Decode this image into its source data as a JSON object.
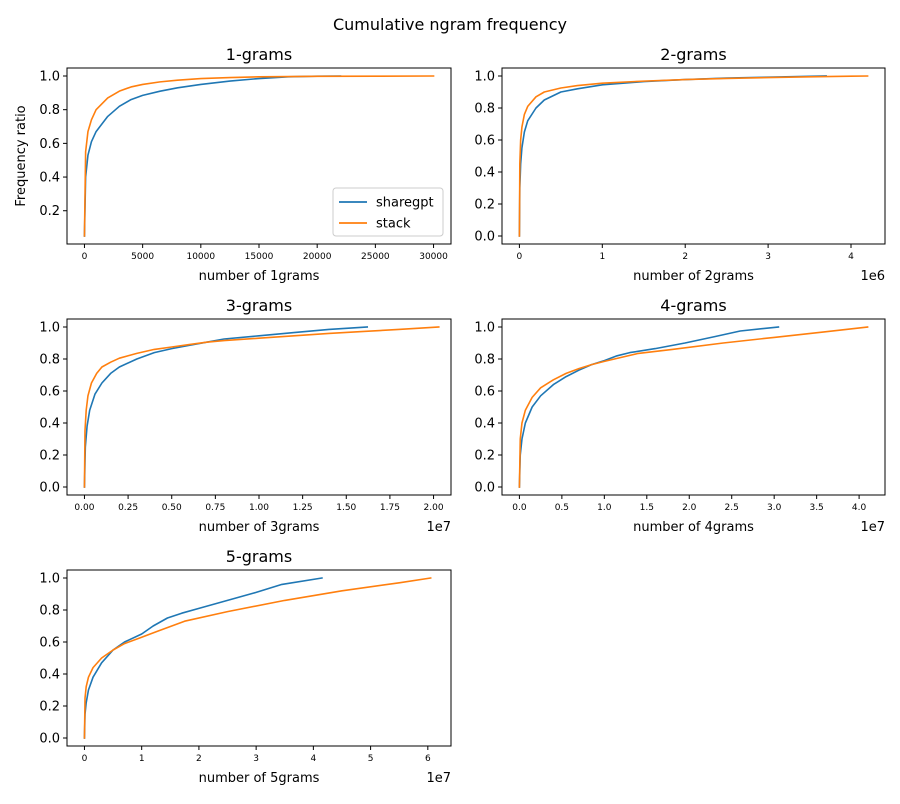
{
  "figure_title": "Cumulative ngram frequency",
  "chart_data": [
    {
      "type": "line",
      "title": "1-grams",
      "xlabel": "number of 1grams",
      "ylabel": "Frequency ratio",
      "xlim": [
        -1500,
        31500
      ],
      "ylim": [
        0.0025,
        1.0475
      ],
      "x_multiplier": "",
      "xticks": [
        0,
        5000,
        10000,
        15000,
        20000,
        25000,
        30000
      ],
      "xtick_labels": [
        "0",
        "5000",
        "10000",
        "15000",
        "20000",
        "25000",
        "30000"
      ],
      "yticks": [
        0.2,
        0.4,
        0.6,
        0.8,
        1.0
      ],
      "ytick_labels": [
        "0.2",
        "0.4",
        "0.6",
        "0.8",
        "1.0"
      ],
      "legend": {
        "position": "lower right",
        "entries": [
          "sharegpt",
          "stack"
        ]
      },
      "series": [
        {
          "name": "sharegpt",
          "color": "#1f77b4",
          "x": [
            0,
            100,
            300,
            600,
            1000,
            2000,
            3000,
            4000,
            5000,
            6500,
            8000,
            10000,
            12500,
            15000,
            17500,
            20000,
            22000
          ],
          "y": [
            0.05,
            0.4,
            0.53,
            0.61,
            0.67,
            0.76,
            0.82,
            0.86,
            0.885,
            0.91,
            0.93,
            0.95,
            0.97,
            0.985,
            0.995,
            0.999,
            1.0
          ]
        },
        {
          "name": "stack",
          "color": "#ff7f0e",
          "x": [
            0,
            100,
            300,
            600,
            1000,
            2000,
            3000,
            4000,
            5000,
            6500,
            8000,
            10000,
            12500,
            15000,
            20000,
            25000,
            30000
          ],
          "y": [
            0.05,
            0.55,
            0.67,
            0.74,
            0.8,
            0.87,
            0.91,
            0.935,
            0.95,
            0.965,
            0.975,
            0.985,
            0.991,
            0.995,
            0.998,
            0.999,
            1.0
          ]
        }
      ]
    },
    {
      "type": "line",
      "title": "2-grams",
      "xlabel": "number of 2grams",
      "ylabel": "",
      "xlim": [
        -210000,
        4410000
      ],
      "ylim": [
        -0.05,
        1.05
      ],
      "x_multiplier": "1e6",
      "xticks": [
        0,
        1000000,
        2000000,
        3000000,
        4000000
      ],
      "xtick_labels": [
        "0",
        "1",
        "2",
        "3",
        "4"
      ],
      "yticks": [
        0.0,
        0.2,
        0.4,
        0.6,
        0.8,
        1.0
      ],
      "ytick_labels": [
        "0.0",
        "0.2",
        "0.4",
        "0.6",
        "0.8",
        "1.0"
      ],
      "series": [
        {
          "name": "sharegpt",
          "color": "#1f77b4",
          "x": [
            0,
            5000,
            15000,
            30000,
            60000,
            100000,
            200000,
            300000,
            500000,
            700000,
            1000000,
            1500000,
            2000000,
            2500000,
            3000000,
            3500000,
            3700000
          ],
          "y": [
            0.0,
            0.3,
            0.45,
            0.55,
            0.65,
            0.72,
            0.8,
            0.85,
            0.9,
            0.92,
            0.945,
            0.965,
            0.978,
            0.987,
            0.993,
            0.998,
            1.0
          ]
        },
        {
          "name": "stack",
          "color": "#ff7f0e",
          "x": [
            0,
            5000,
            15000,
            30000,
            60000,
            100000,
            200000,
            300000,
            500000,
            700000,
            1000000,
            1500000,
            2000000,
            2500000,
            3000000,
            3500000,
            4000000,
            4200000
          ],
          "y": [
            0.0,
            0.45,
            0.6,
            0.68,
            0.76,
            0.81,
            0.87,
            0.9,
            0.925,
            0.94,
            0.955,
            0.968,
            0.978,
            0.985,
            0.99,
            0.995,
            0.999,
            1.0
          ]
        }
      ]
    },
    {
      "type": "line",
      "title": "3-grams",
      "xlabel": "number of 3grams",
      "ylabel": "",
      "xlim": [
        -1000000,
        21000000
      ],
      "ylim": [
        -0.05,
        1.05
      ],
      "x_multiplier": "1e7",
      "xticks": [
        0,
        2500000,
        5000000,
        7500000,
        10000000,
        12500000,
        15000000,
        17500000,
        20000000
      ],
      "xtick_labels": [
        "0.00",
        "0.25",
        "0.50",
        "0.75",
        "1.00",
        "1.25",
        "1.50",
        "1.75",
        "2.00"
      ],
      "yticks": [
        0.0,
        0.2,
        0.4,
        0.6,
        0.8,
        1.0
      ],
      "ytick_labels": [
        "0.0",
        "0.2",
        "0.4",
        "0.6",
        "0.8",
        "1.0"
      ],
      "series": [
        {
          "name": "sharegpt",
          "color": "#1f77b4",
          "x": [
            0,
            50000,
            150000,
            300000,
            600000,
            1000000,
            1500000,
            2000000,
            3000000,
            4000000,
            5000000,
            6000000,
            7000000,
            8000000,
            10000000,
            12000000,
            14000000,
            16200000
          ],
          "y": [
            0.0,
            0.25,
            0.38,
            0.48,
            0.58,
            0.65,
            0.71,
            0.75,
            0.8,
            0.84,
            0.865,
            0.885,
            0.905,
            0.925,
            0.945,
            0.965,
            0.985,
            1.0
          ]
        },
        {
          "name": "stack",
          "color": "#ff7f0e",
          "x": [
            0,
            30000,
            100000,
            200000,
            400000,
            700000,
            1000000,
            1500000,
            2000000,
            3000000,
            4000000,
            5000000,
            6000000,
            7000000,
            8000000,
            10000000,
            12000000,
            14000000,
            16000000,
            18000000,
            20300000
          ],
          "y": [
            0.0,
            0.35,
            0.48,
            0.57,
            0.65,
            0.71,
            0.75,
            0.78,
            0.805,
            0.835,
            0.86,
            0.875,
            0.89,
            0.905,
            0.915,
            0.93,
            0.945,
            0.96,
            0.972,
            0.985,
            1.0
          ]
        }
      ]
    },
    {
      "type": "line",
      "title": "4-grams",
      "xlabel": "number of 4grams",
      "ylabel": "",
      "xlim": [
        -2050000,
        43050000
      ],
      "ylim": [
        -0.05,
        1.05
      ],
      "x_multiplier": "1e7",
      "xticks": [
        0,
        5000000,
        10000000,
        15000000,
        20000000,
        25000000,
        30000000,
        35000000,
        40000000
      ],
      "xtick_labels": [
        "0.0",
        "0.5",
        "1.0",
        "1.5",
        "2.0",
        "2.5",
        "3.0",
        "3.5",
        "4.0"
      ],
      "yticks": [
        0.0,
        0.2,
        0.4,
        0.6,
        0.8,
        1.0
      ],
      "ytick_labels": [
        "0.0",
        "0.2",
        "0.4",
        "0.6",
        "0.8",
        "1.0"
      ],
      "series": [
        {
          "name": "sharegpt",
          "color": "#1f77b4",
          "x": [
            0,
            100000,
            300000,
            700000,
            1500000,
            2500000,
            4000000,
            5500000,
            7000000,
            8500000,
            10000000,
            11500000,
            13000000,
            16000000,
            19500000,
            23000000,
            26000000,
            30500000
          ],
          "y": [
            0.0,
            0.2,
            0.3,
            0.4,
            0.5,
            0.57,
            0.64,
            0.69,
            0.73,
            0.765,
            0.79,
            0.82,
            0.84,
            0.865,
            0.9,
            0.94,
            0.975,
            1.0
          ]
        },
        {
          "name": "stack",
          "color": "#ff7f0e",
          "x": [
            0,
            100000,
            300000,
            700000,
            1500000,
            2500000,
            4000000,
            5500000,
            7000000,
            8500000,
            10000000,
            12000000,
            14000000,
            18000000,
            24000000,
            30000000,
            36000000,
            41000000
          ],
          "y": [
            0.0,
            0.3,
            0.4,
            0.48,
            0.56,
            0.62,
            0.67,
            0.71,
            0.74,
            0.765,
            0.785,
            0.81,
            0.835,
            0.86,
            0.9,
            0.935,
            0.97,
            1.0
          ]
        }
      ]
    },
    {
      "type": "line",
      "title": "5-grams",
      "xlabel": "number of 5grams",
      "ylabel": "",
      "xlim": [
        -3050000,
        64050000
      ],
      "ylim": [
        -0.05,
        1.05
      ],
      "x_multiplier": "1e7",
      "xticks": [
        0,
        10000000,
        20000000,
        30000000,
        40000000,
        50000000,
        60000000
      ],
      "xtick_labels": [
        "0",
        "1",
        "2",
        "3",
        "4",
        "5",
        "6"
      ],
      "yticks": [
        0.0,
        0.2,
        0.4,
        0.6,
        0.8,
        1.0
      ],
      "ytick_labels": [
        "0.0",
        "0.2",
        "0.4",
        "0.6",
        "0.8",
        "1.0"
      ],
      "series": [
        {
          "name": "sharegpt",
          "color": "#1f77b4",
          "x": [
            0,
            100000,
            300000,
            700000,
            1500000,
            3000000,
            5000000,
            7000000,
            10000000,
            12000000,
            14500000,
            17000000,
            20000000,
            25000000,
            30000000,
            34500000,
            41500000
          ],
          "y": [
            0.0,
            0.15,
            0.22,
            0.3,
            0.38,
            0.47,
            0.55,
            0.6,
            0.65,
            0.7,
            0.75,
            0.78,
            0.81,
            0.86,
            0.91,
            0.96,
            1.0
          ]
        },
        {
          "name": "stack",
          "color": "#ff7f0e",
          "x": [
            0,
            100000,
            300000,
            700000,
            1500000,
            3000000,
            5000000,
            7000000,
            10000000,
            13000000,
            17500000,
            25000000,
            35000000,
            45000000,
            55000000,
            60500000
          ],
          "y": [
            0.0,
            0.25,
            0.32,
            0.38,
            0.44,
            0.5,
            0.55,
            0.59,
            0.63,
            0.67,
            0.73,
            0.79,
            0.86,
            0.92,
            0.97,
            1.0
          ]
        }
      ]
    }
  ]
}
